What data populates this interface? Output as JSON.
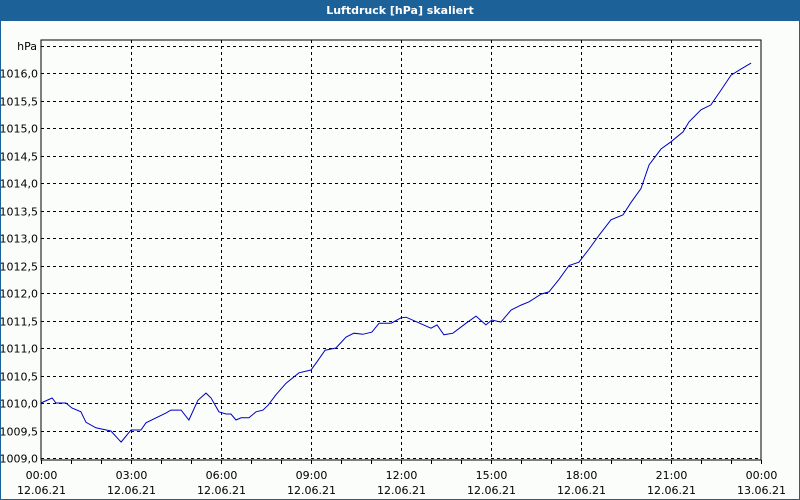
{
  "window": {
    "title": "Luftdruck [hPa] skaliert",
    "accent": "#1d6199"
  },
  "chart_data": {
    "type": "line",
    "title": "Luftdruck [hPa] skaliert",
    "ylabel": "hPa",
    "xlabel": "",
    "ylim": [
      1009.0,
      1016.0
    ],
    "yticks": [
      "1016,0",
      "1015,5",
      "1015,0",
      "1014,5",
      "1014,0",
      "1013,5",
      "1013,0",
      "1012,5",
      "1012,0",
      "1011,5",
      "1011,0",
      "1010,5",
      "1010,0",
      "1009,5",
      "1009,0"
    ],
    "xticks": [
      {
        "time": "00:00",
        "date": "12.06.21"
      },
      {
        "time": "03:00",
        "date": "12.06.21"
      },
      {
        "time": "06:00",
        "date": "12.06.21"
      },
      {
        "time": "09:00",
        "date": "12.06.21"
      },
      {
        "time": "12:00",
        "date": "12.06.21"
      },
      {
        "time": "15:00",
        "date": "12.06.21"
      },
      {
        "time": "18:00",
        "date": "12.06.21"
      },
      {
        "time": "21:00",
        "date": "12.06.21"
      },
      {
        "time": "00:00",
        "date": "13.06.21"
      }
    ],
    "grid": true,
    "series": [
      {
        "name": "Luftdruck",
        "color": "#0000c0",
        "x_hours": [
          0,
          0.37,
          0.5,
          0.83,
          1.03,
          1.33,
          1.5,
          1.83,
          2.0,
          2.33,
          2.6,
          2.67,
          3.0,
          3.33,
          3.5,
          4.17,
          4.33,
          4.67,
          4.93,
          5.23,
          5.5,
          5.67,
          5.93,
          6.17,
          6.33,
          6.5,
          6.67,
          6.93,
          7.17,
          7.4,
          7.57,
          7.83,
          8.17,
          8.6,
          9.0,
          9.2,
          9.47,
          9.83,
          10.17,
          10.43,
          10.73,
          11.03,
          11.27,
          11.67,
          12.0,
          12.17,
          13.0,
          13.2,
          13.43,
          13.73,
          14.17,
          14.5,
          14.83,
          15.03,
          15.33,
          15.67,
          16.0,
          16.27,
          16.67,
          16.93,
          17.27,
          17.6,
          17.93,
          18.27,
          18.6,
          19.0,
          19.4,
          19.67,
          20.0,
          20.27,
          20.67,
          21.0,
          21.4,
          21.6,
          22.0,
          22.33,
          22.67,
          23.0,
          23.33,
          23.67
        ],
        "values": [
          1010.0,
          1010.09,
          1010.0,
          1010.0,
          1009.91,
          1009.84,
          1009.65,
          1009.55,
          1009.53,
          1009.49,
          1009.33,
          1009.29,
          1009.51,
          1009.51,
          1009.64,
          1009.82,
          1009.87,
          1009.87,
          1009.69,
          1010.05,
          1010.18,
          1010.09,
          1009.84,
          1009.8,
          1009.8,
          1009.69,
          1009.73,
          1009.73,
          1009.84,
          1009.87,
          1009.96,
          1010.15,
          1010.36,
          1010.55,
          1010.6,
          1010.75,
          1010.96,
          1011.0,
          1011.2,
          1011.27,
          1011.25,
          1011.29,
          1011.45,
          1011.45,
          1011.55,
          1011.56,
          1011.36,
          1011.42,
          1011.24,
          1011.27,
          1011.45,
          1011.58,
          1011.42,
          1011.51,
          1011.47,
          1011.69,
          1011.78,
          1011.84,
          1011.98,
          1012.02,
          1012.25,
          1012.5,
          1012.56,
          1012.8,
          1013.05,
          1013.33,
          1013.42,
          1013.65,
          1013.9,
          1014.33,
          1014.62,
          1014.75,
          1014.93,
          1015.11,
          1015.33,
          1015.42,
          1015.69,
          1015.96,
          1016.07,
          1016.18
        ]
      }
    ]
  }
}
